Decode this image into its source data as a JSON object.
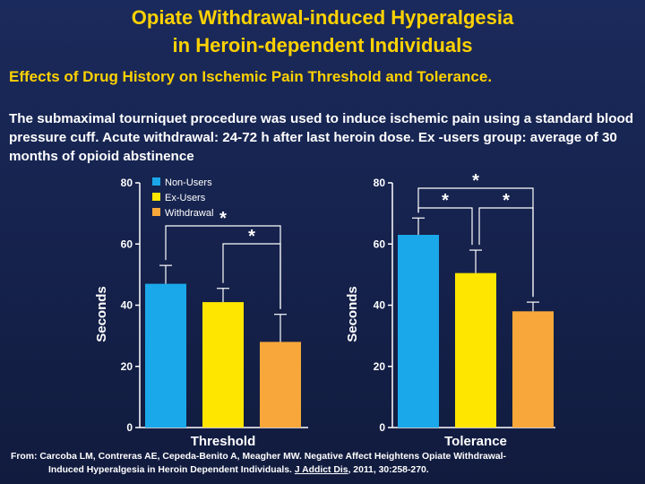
{
  "title_line1": "Opiate Withdrawal-induced Hyperalgesia",
  "title_line2": "in Heroin-dependent Individuals",
  "subtitle": "Effects of Drug History on Ischemic Pain Threshold and Tolerance.",
  "description": "The submaximal tourniquet procedure was used to induce ischemic pain using a standard blood pressure cuff. Acute withdrawal: 24-72 h after last heroin dose. Ex -users group: average of 30 months of opioid abstinence",
  "citation": {
    "line1": "From: Carcoba LM, Contreras AE, Cepeda-Benito A, Meagher MW. Negative Affect Heightens Opiate Withdrawal-",
    "line2_pre": "Induced Hyperalgesia in Heroin Dependent Individuals.",
    "journal": "J Addict Dis",
    "line2_post": ", 2011, 30:258-270."
  },
  "colors": {
    "title": "#ffd200",
    "non_users": "#1aa8ea",
    "ex_users": "#ffe600",
    "withdrawal": "#f8a83a",
    "axis": "#ffffff"
  },
  "chart_data": [
    {
      "type": "bar",
      "xlabel": "Threshold",
      "ylabel": "Seconds",
      "ylim": [
        0,
        80
      ],
      "yticks": [
        0,
        20,
        40,
        60,
        80
      ],
      "legend": "top-left",
      "series": [
        {
          "name": "Non-Users",
          "value": 47,
          "error": 6
        },
        {
          "name": "Ex-Users",
          "value": 41,
          "error": 4.5
        },
        {
          "name": "Withdrawal",
          "value": 28,
          "error": 9
        }
      ],
      "significance": [
        {
          "from": 0,
          "to": 2,
          "label": "*"
        },
        {
          "from": 1,
          "to": 2,
          "label": "*"
        }
      ]
    },
    {
      "type": "bar",
      "xlabel": "Tolerance",
      "ylabel": "Seconds",
      "ylim": [
        0,
        80
      ],
      "yticks": [
        0,
        20,
        40,
        60,
        80
      ],
      "series": [
        {
          "name": "Non-Users",
          "value": 63,
          "error": 5.5
        },
        {
          "name": "Ex-Users",
          "value": 50.5,
          "error": 7.5
        },
        {
          "name": "Withdrawal",
          "value": 38,
          "error": 3
        }
      ],
      "significance": [
        {
          "from": 0,
          "to": 2,
          "label": "*"
        },
        {
          "from": 0,
          "to": 1,
          "label": "*"
        },
        {
          "from": 1,
          "to": 2,
          "label": "*"
        }
      ]
    }
  ]
}
